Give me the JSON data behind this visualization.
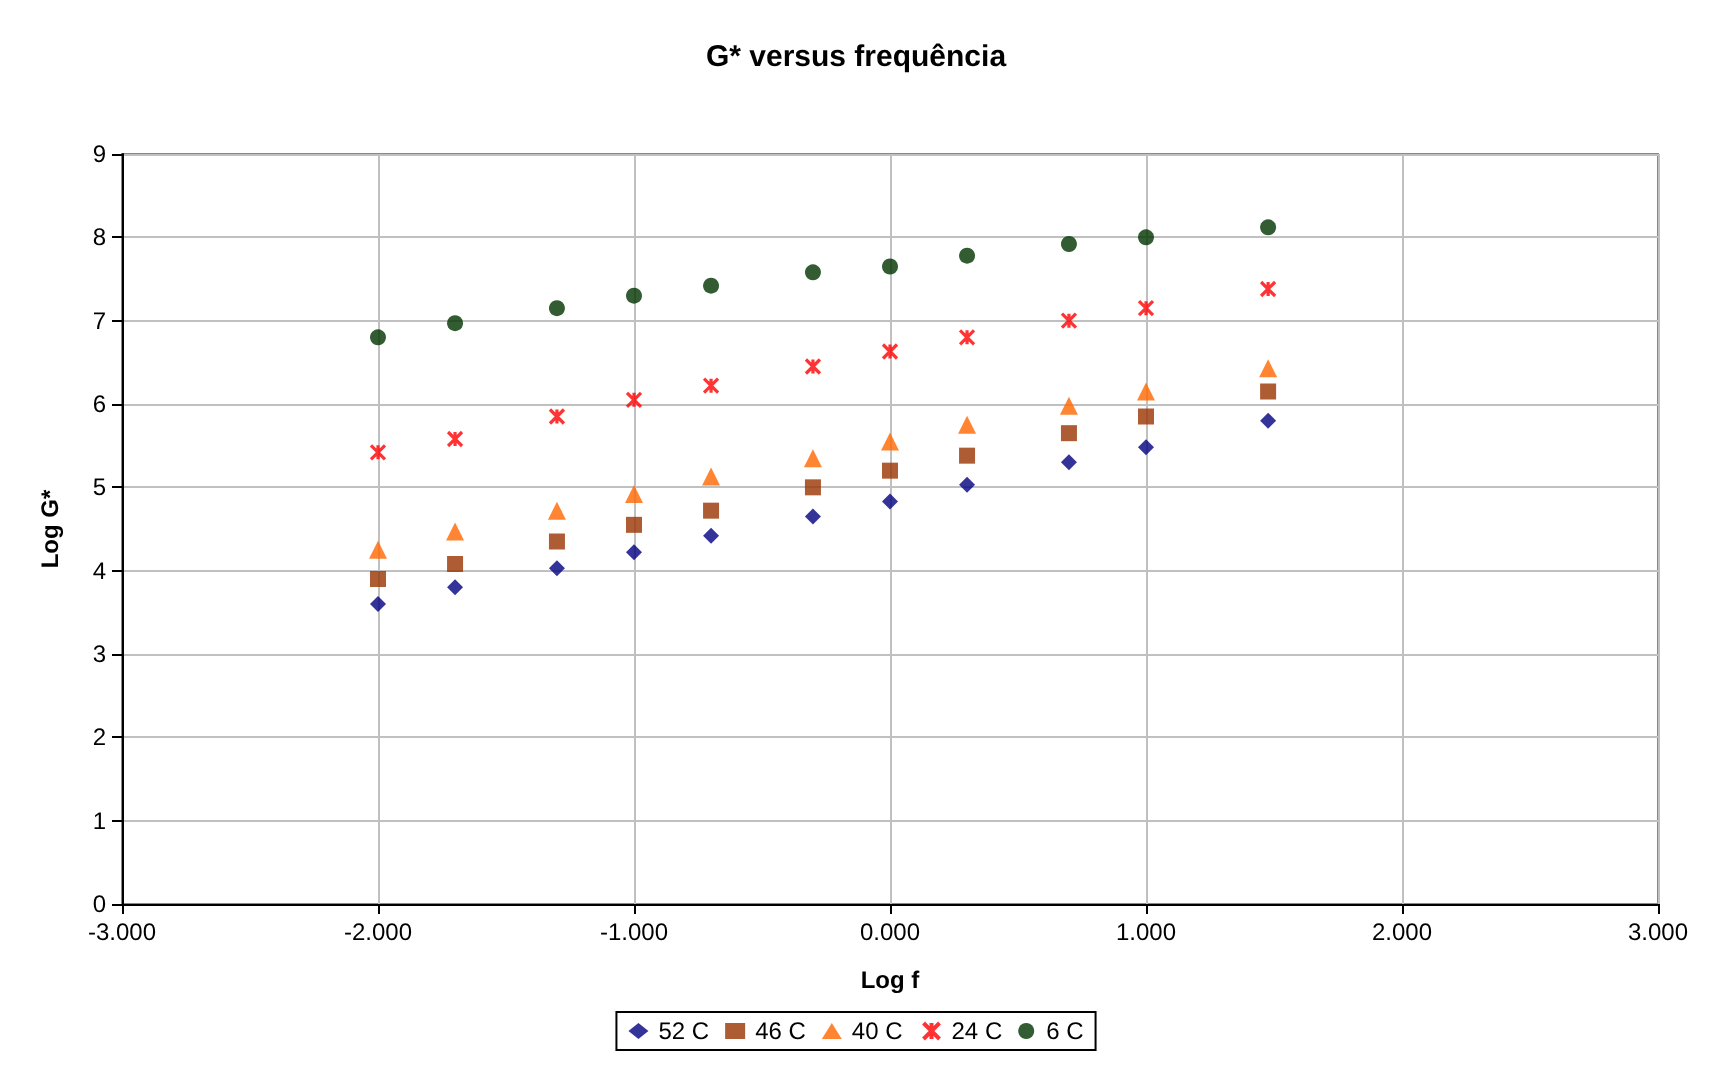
{
  "chart_data": {
    "type": "scatter",
    "title": "G* versus frequência",
    "xlabel": "Log f",
    "ylabel": "Log G*",
    "x": [
      -2,
      -1.699,
      -1.301,
      -1,
      -0.699,
      -0.301,
      0,
      0.301,
      0.699,
      1,
      1.477
    ],
    "series": [
      {
        "name": "52 C",
        "color": "#000080",
        "marker": "diamond",
        "values": [
          3.6,
          3.8,
          4.03,
          4.22,
          4.42,
          4.65,
          4.83,
          5.03,
          5.3,
          5.48,
          5.8
        ]
      },
      {
        "name": "46 C",
        "color": "#993300",
        "marker": "square",
        "values": [
          3.9,
          4.08,
          4.35,
          4.55,
          4.72,
          5.0,
          5.2,
          5.38,
          5.65,
          5.85,
          6.15
        ]
      },
      {
        "name": "40 C",
        "color": "#ff6600",
        "marker": "triangle",
        "values": [
          4.25,
          4.47,
          4.72,
          4.92,
          5.13,
          5.35,
          5.55,
          5.75,
          5.98,
          6.15,
          6.43
        ]
      },
      {
        "name": "24 C",
        "color": "#ff0000",
        "marker": "cross",
        "values": [
          5.42,
          5.58,
          5.85,
          6.05,
          6.22,
          6.45,
          6.63,
          6.8,
          7.0,
          7.15,
          7.38
        ]
      },
      {
        "name": "6 C",
        "color": "#003300",
        "marker": "circle",
        "values": [
          6.8,
          6.97,
          7.15,
          7.3,
          7.42,
          7.58,
          7.65,
          7.78,
          7.92,
          8.0,
          8.12
        ]
      }
    ],
    "xlim": [
      -3,
      3
    ],
    "xticks": [
      {
        "value": -3,
        "label": "-3.000"
      },
      {
        "value": -2,
        "label": "-2.000"
      },
      {
        "value": -1,
        "label": "-1.000"
      },
      {
        "value": 0,
        "label": "0.000"
      },
      {
        "value": 1,
        "label": "1.000"
      },
      {
        "value": 2,
        "label": "2.000"
      },
      {
        "value": 3,
        "label": "3.000"
      }
    ],
    "ylim": [
      0,
      9
    ],
    "yticks": [
      0,
      1,
      2,
      3,
      4,
      5,
      6,
      7,
      8,
      9
    ],
    "grid": true,
    "legend": "bottom"
  }
}
